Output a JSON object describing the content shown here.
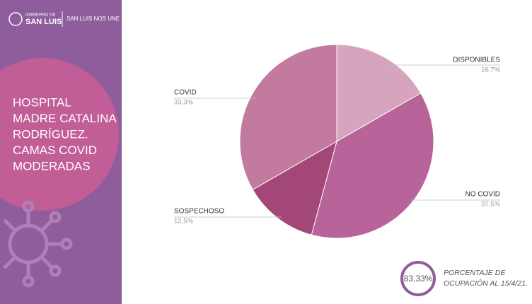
{
  "header": {
    "org_line1": "GOBIERNO DE",
    "org_line2": "SAN LUIS",
    "slogan": "SAN LUIS NOS UNE"
  },
  "chart_data": {
    "type": "pie",
    "title": [
      "HOSPITAL",
      "MADRE CATALINA",
      "RODRÍGUEZ.",
      "CAMAS COVID",
      "MODERADAS"
    ],
    "categories": [
      "DISPONIBLES",
      "NO COVID",
      "SOSPECHOSO",
      "COVID"
    ],
    "values": [
      16.7,
      37.5,
      12.5,
      33.3
    ],
    "value_labels": [
      "16,7%",
      "37,5%",
      "12,5%",
      "33,3%"
    ],
    "colors": [
      "#d6a4bc",
      "#b86399",
      "#a24777",
      "#c27a9f"
    ]
  },
  "occupancy": {
    "value": 83.33,
    "value_label": "83,33%",
    "caption": [
      "PORCENTAJE DE",
      "OCUPACIÓN AL 15/4/21."
    ]
  }
}
